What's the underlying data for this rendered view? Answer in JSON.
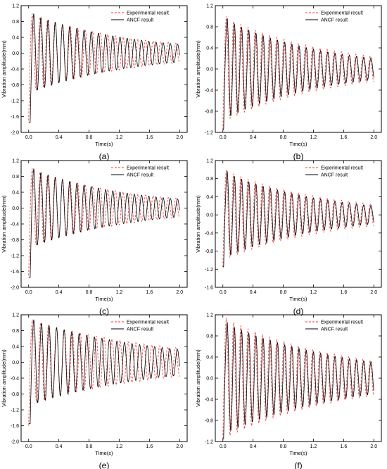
{
  "colors": {
    "experimental": "#ff3333",
    "ancf": "#000000",
    "axis": "#000000"
  },
  "chart_data": [
    {
      "type": "line",
      "panel_label": "(a)",
      "xlabel": "Time(s)",
      "ylabel": "Vibration amplitude(mm)",
      "xlim": [
        -0.1,
        2.1
      ],
      "ylim": [
        -2.0,
        1.2
      ],
      "xticks": [
        "0.0",
        "0.4",
        "0.8",
        "1.2",
        "1.6",
        "2.0"
      ],
      "yticks": [
        "-2.0",
        "-1.6",
        "-1.2",
        "-0.8",
        "-0.4",
        "0.0",
        "0.4",
        "0.8",
        "1.2"
      ],
      "legend_position": "top-right",
      "series": [
        {
          "name": "Experimental result",
          "style": "dashed",
          "color": "#ff3333",
          "start_value": -1.7,
          "peak_amplitude": 1.0,
          "end_amplitude": 0.24,
          "frequency_hz": 10.0,
          "phase_lag_s": 0.0
        },
        {
          "name": "ANCF result",
          "style": "solid",
          "color": "#000000",
          "start_value": -1.75,
          "peak_amplitude": 1.0,
          "end_amplitude": 0.22,
          "frequency_hz": 10.5,
          "phase_lag_s": 0.02
        }
      ]
    },
    {
      "type": "line",
      "panel_label": "(b)",
      "xlabel": "Time(s)",
      "ylabel": "Vibration amplitude(mm)",
      "xlim": [
        -0.1,
        2.1
      ],
      "ylim": [
        -1.2,
        1.2
      ],
      "xticks": [
        "0.0",
        "0.4",
        "0.8",
        "1.2",
        "1.6",
        "2.0"
      ],
      "yticks": [
        "-1.2",
        "-0.8",
        "-0.4",
        "0.0",
        "0.4",
        "0.8",
        "1.2"
      ],
      "legend_position": "top-right",
      "series": [
        {
          "name": "Experimental result",
          "style": "dashed",
          "color": "#ff3333",
          "start_value": -1.15,
          "peak_amplitude": 1.0,
          "end_amplitude": 0.24,
          "frequency_hz": 10.5,
          "phase_lag_s": 0.0
        },
        {
          "name": "ANCF result",
          "style": "solid",
          "color": "#000000",
          "start_value": -1.15,
          "peak_amplitude": 0.95,
          "end_amplitude": 0.2,
          "frequency_hz": 10.5,
          "phase_lag_s": 0.01
        }
      ]
    },
    {
      "type": "line",
      "panel_label": "(c)",
      "xlabel": "Time(s)",
      "ylabel": "Vibration amplitude(mm)",
      "xlim": [
        -0.1,
        2.1
      ],
      "ylim": [
        -2.0,
        1.2
      ],
      "xticks": [
        "0.0",
        "0.4",
        "0.8",
        "1.2",
        "1.6",
        "2.0"
      ],
      "yticks": [
        "-2.0",
        "-1.6",
        "-1.2",
        "-0.8",
        "-0.4",
        "0.0",
        "0.4",
        "0.8",
        "1.2"
      ],
      "legend_position": "top-right",
      "series": [
        {
          "name": "Experimental result",
          "style": "dashed",
          "color": "#ff3333",
          "start_value": -1.7,
          "peak_amplitude": 1.0,
          "end_amplitude": 0.24,
          "frequency_hz": 10.0,
          "phase_lag_s": 0.0
        },
        {
          "name": "ANCF result",
          "style": "solid",
          "color": "#000000",
          "start_value": -1.75,
          "peak_amplitude": 1.0,
          "end_amplitude": 0.22,
          "frequency_hz": 10.5,
          "phase_lag_s": 0.02
        }
      ]
    },
    {
      "type": "line",
      "panel_label": "(d)",
      "xlabel": "Time(s)",
      "ylabel": "Vibration amplitude(mm)",
      "xlim": [
        -0.1,
        2.1
      ],
      "ylim": [
        -1.6,
        1.2
      ],
      "xticks": [
        "0.0",
        "0.4",
        "0.8",
        "1.2",
        "1.6",
        "2.0"
      ],
      "yticks": [
        "-1.6",
        "-1.2",
        "-0.8",
        "-0.4",
        "0.0",
        "0.4",
        "0.8",
        "1.2"
      ],
      "legend_position": "top-right",
      "series": [
        {
          "name": "Experimental result",
          "style": "dashed",
          "color": "#ff3333",
          "start_value": -1.15,
          "peak_amplitude": 1.0,
          "end_amplitude": 0.24,
          "frequency_hz": 10.5,
          "phase_lag_s": 0.0
        },
        {
          "name": "ANCF result",
          "style": "solid",
          "color": "#000000",
          "start_value": -1.15,
          "peak_amplitude": 0.95,
          "end_amplitude": 0.2,
          "frequency_hz": 10.5,
          "phase_lag_s": 0.01
        }
      ]
    },
    {
      "type": "line",
      "panel_label": "(e)",
      "xlabel": "Time(s)",
      "ylabel": "Vibration amplitude(mm)",
      "xlim": [
        -0.1,
        2.1
      ],
      "ylim": [
        -2.0,
        1.2
      ],
      "xticks": [
        "0.0",
        "0.4",
        "0.8",
        "1.2",
        "1.6",
        "2.0"
      ],
      "yticks": [
        "-2.0",
        "-1.6",
        "-1.2",
        "-0.8",
        "-0.4",
        "0.0",
        "0.4",
        "0.8",
        "1.2"
      ],
      "legend_position": "top-right",
      "series": [
        {
          "name": "Experimental result",
          "style": "dashed",
          "color": "#ff3333",
          "start_value": -1.6,
          "peak_amplitude": 1.08,
          "end_amplitude": 0.36,
          "frequency_hz": 9.5,
          "phase_lag_s": 0.0
        },
        {
          "name": "ANCF result",
          "style": "solid",
          "color": "#000000",
          "start_value": -1.55,
          "peak_amplitude": 1.08,
          "end_amplitude": 0.32,
          "frequency_hz": 10.0,
          "phase_lag_s": 0.02
        }
      ]
    },
    {
      "type": "line",
      "panel_label": "(f)",
      "xlabel": "Time(s)",
      "ylabel": "Vibration amplitude(mm)",
      "xlim": [
        -0.1,
        2.1
      ],
      "ylim": [
        -1.2,
        1.2
      ],
      "xticks": [
        "0.0",
        "0.4",
        "0.8",
        "1.2",
        "1.6",
        "2.0"
      ],
      "yticks": [
        "-1.2",
        "-0.8",
        "-0.4",
        "0.0",
        "0.4",
        "0.8",
        "1.2"
      ],
      "legend_position": "top-right",
      "series": [
        {
          "name": "Experimental result",
          "style": "dashed",
          "color": "#ff3333",
          "start_value": -1.15,
          "peak_amplitude": 1.15,
          "end_amplitude": 0.33,
          "frequency_hz": 10.5,
          "phase_lag_s": 0.0
        },
        {
          "name": "ANCF result",
          "style": "solid",
          "color": "#000000",
          "start_value": -1.15,
          "peak_amplitude": 1.05,
          "end_amplitude": 0.3,
          "frequency_hz": 10.5,
          "phase_lag_s": 0.01
        }
      ]
    }
  ]
}
